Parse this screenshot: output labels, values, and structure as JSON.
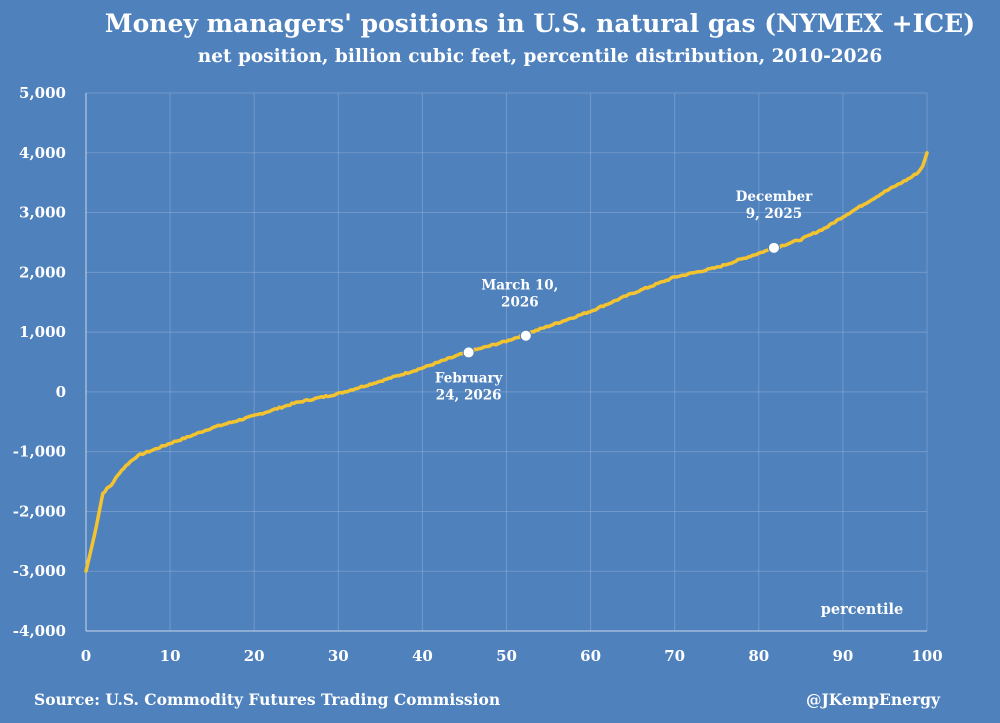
{
  "chart_data": {
    "type": "line",
    "title": "Money managers' positions in U.S. natural gas (NYMEX +ICE)",
    "subtitle": "net position, billion cubic feet, percentile distribution, 2010-2026",
    "xlabel": "percentile",
    "ylabel": "",
    "xlim": [
      0,
      100
    ],
    "ylim": [
      -4000,
      5000
    ],
    "x_ticks": [
      0,
      10,
      20,
      30,
      40,
      50,
      60,
      70,
      80,
      90,
      100
    ],
    "x_tick_labels": [
      "0",
      "10",
      "20",
      "30",
      "40",
      "50",
      "60",
      "70",
      "80",
      "90",
      "100"
    ],
    "y_ticks": [
      -4000,
      -3000,
      -2000,
      -1000,
      0,
      1000,
      2000,
      3000,
      4000,
      5000
    ],
    "y_tick_labels": [
      "-4,000",
      "-3,000",
      "-2,000",
      "-1,000",
      "0",
      "1,000",
      "2,000",
      "3,000",
      "4,000",
      "5,000"
    ],
    "grid": true,
    "series": [
      {
        "name": "net position percentile distribution",
        "color": "#f4c430",
        "x": [
          0,
          0.5,
          1,
          1.5,
          2,
          2.5,
          3,
          4,
          5,
          6,
          7,
          8,
          10,
          12,
          15,
          20,
          25,
          30,
          35,
          40,
          45,
          50,
          55,
          60,
          65,
          70,
          75,
          80,
          85,
          88,
          90,
          95,
          98,
          99,
          99.5,
          100
        ],
        "values": [
          -3000,
          -2700,
          -2400,
          -2050,
          -1700,
          -1620,
          -1560,
          -1350,
          -1200,
          -1080,
          -1020,
          -970,
          -860,
          -760,
          -600,
          -400,
          -180,
          -30,
          180,
          400,
          650,
          850,
          1100,
          1350,
          1650,
          1920,
          2080,
          2320,
          2550,
          2750,
          2930,
          3350,
          3580,
          3680,
          3780,
          4000
        ]
      }
    ],
    "annotations": [
      {
        "label_lines": [
          "February",
          "24, 2026"
        ],
        "x": 45.5,
        "y": 660
      },
      {
        "label_lines": [
          "March 10,",
          "2026"
        ],
        "x": 52.3,
        "y": 940
      },
      {
        "label_lines": [
          "December",
          "9,  2025"
        ],
        "x": 81.8,
        "y": 2410
      }
    ]
  },
  "footer": {
    "source": "Source: U.S. Commodity Futures Trading Commission",
    "credit": "@JKempEnergy"
  },
  "colors": {
    "background": "#4f81bd",
    "line": "#f4c430",
    "text": "#ffffff"
  }
}
